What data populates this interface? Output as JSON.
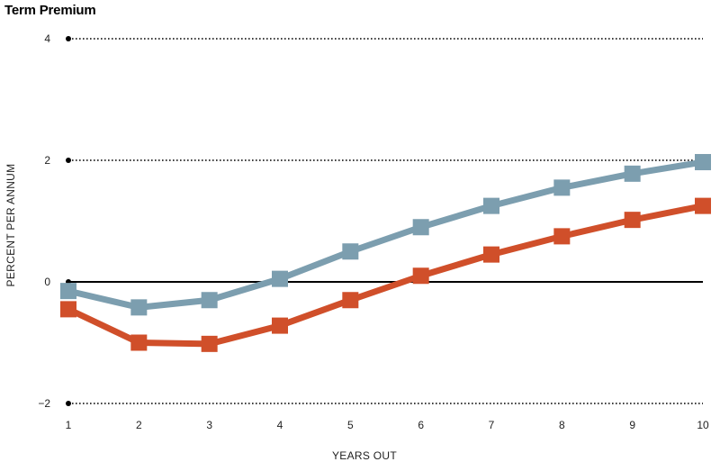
{
  "chart_data": {
    "type": "line",
    "title": "Term Premium",
    "xlabel": "YEARS OUT",
    "ylabel": "PERCENT PER ANNUM",
    "x": [
      1,
      2,
      3,
      4,
      5,
      6,
      7,
      8,
      9,
      10
    ],
    "xlim": [
      1,
      10
    ],
    "ylim": [
      -2,
      4
    ],
    "y_ticks": [
      -2,
      0,
      2,
      4
    ],
    "x_tick_labels": [
      "1",
      "2",
      "3",
      "4",
      "5",
      "6",
      "7",
      "8",
      "9",
      "10"
    ],
    "y_tick_labels": [
      "−2",
      "0",
      "2",
      "4"
    ],
    "grid": "dotted horizontal at y ticks",
    "series": [
      {
        "values": [
          -0.15,
          -0.42,
          -0.3,
          0.05,
          0.5,
          0.9,
          1.25,
          1.55,
          1.78,
          1.97
        ],
        "color": "#7c9eaf"
      },
      {
        "values": [
          -0.45,
          -1.0,
          -1.02,
          -0.72,
          -0.3,
          0.1,
          0.45,
          0.75,
          1.02,
          1.25
        ],
        "color": "#d04f2a"
      }
    ]
  }
}
